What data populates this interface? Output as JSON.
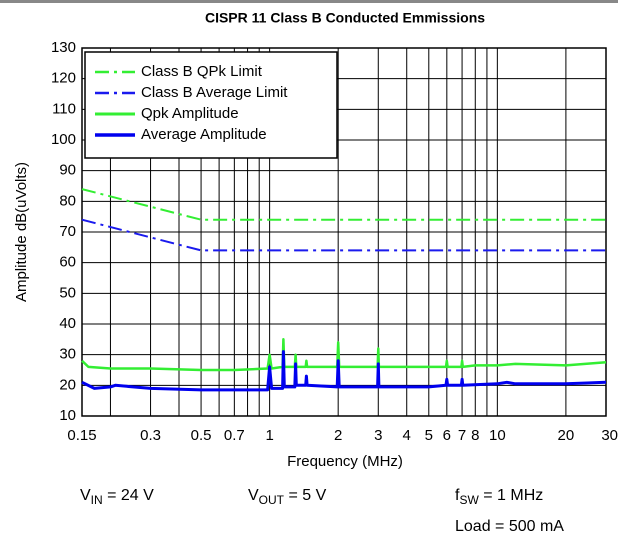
{
  "chart_data": {
    "type": "line",
    "title": "CISPR 11 Class B Conducted Emmissions",
    "xlabel": "Frequency (MHz)",
    "ylabel": "Amplitude dB(uVolts)",
    "xscale": "log",
    "xlim": [
      0.15,
      30
    ],
    "ylim": [
      10,
      130
    ],
    "xticks": [
      0.15,
      0.3,
      0.5,
      0.7,
      1,
      2,
      3,
      4,
      5,
      6,
      7,
      8,
      10,
      20,
      30
    ],
    "xgrid_minor": [
      0.2,
      0.4,
      0.6,
      0.8,
      0.9,
      9
    ],
    "yticks": [
      10,
      20,
      30,
      40,
      50,
      60,
      70,
      80,
      90,
      100,
      110,
      120,
      130
    ],
    "grid": true,
    "legend": "upper left",
    "series": [
      {
        "name": "Class B QPk Limit",
        "color": "#33ee33",
        "dash": "dashdot",
        "width": 2,
        "x": [
          0.15,
          0.5,
          30
        ],
        "values": [
          84,
          74,
          74
        ]
      },
      {
        "name": "Class B Average Limit",
        "color": "#1a1aee",
        "dash": "dashdot",
        "width": 2,
        "x": [
          0.15,
          0.5,
          30
        ],
        "values": [
          74,
          64,
          64
        ]
      },
      {
        "name": "Qpk Amplitude",
        "color": "#33ee33",
        "dash": "solid",
        "width": 2.5,
        "x": [
          0.15,
          0.16,
          0.2,
          0.3,
          0.5,
          0.7,
          0.98,
          1.0,
          1.02,
          1.14,
          1.15,
          1.16,
          1.29,
          1.3,
          1.31,
          1.44,
          1.45,
          1.46,
          1.98,
          2.0,
          2.02,
          2.98,
          3.0,
          3.02,
          4,
          5,
          5.95,
          6.0,
          6.05,
          6.95,
          7.0,
          7.05,
          8,
          10,
          12,
          20,
          30
        ],
        "values": [
          28,
          26,
          25.5,
          25.5,
          25,
          25,
          25.5,
          30,
          25.5,
          26,
          35,
          26,
          26,
          30,
          26,
          26,
          28,
          26,
          26,
          34,
          26,
          26,
          32,
          26,
          26,
          26,
          26,
          28,
          26,
          26,
          28,
          26,
          26.5,
          26.5,
          27,
          26.5,
          27.5
        ]
      },
      {
        "name": "Average Amplitude",
        "color": "#0000ee",
        "dash": "solid",
        "width": 3,
        "x": [
          0.15,
          0.17,
          0.2,
          0.21,
          0.3,
          0.5,
          0.98,
          1.0,
          1.02,
          1.14,
          1.15,
          1.16,
          1.29,
          1.3,
          1.31,
          1.44,
          1.45,
          1.46,
          1.98,
          2.0,
          2.02,
          2.98,
          3.0,
          3.02,
          5,
          5.95,
          6.0,
          6.05,
          6.95,
          7.0,
          7.05,
          10,
          11,
          12,
          20,
          30
        ],
        "values": [
          21,
          19,
          19.5,
          20,
          19,
          18.5,
          18.5,
          26,
          19,
          19,
          31,
          19.5,
          19.5,
          27,
          20,
          20,
          23,
          20,
          19.5,
          28,
          19.5,
          19.5,
          27,
          19.5,
          19.5,
          20,
          22,
          20,
          20,
          22,
          20,
          20.5,
          21,
          20.5,
          20.5,
          21
        ]
      }
    ],
    "annotations": [
      {
        "text": "V",
        "sub": "IN",
        "rest": " = 24 V"
      },
      {
        "text": "V",
        "sub": "OUT",
        "rest": " = 5 V"
      },
      {
        "text": "f",
        "sub": "SW",
        "rest": " = 1 MHz"
      },
      {
        "text": "Load = 500 mA"
      }
    ]
  }
}
